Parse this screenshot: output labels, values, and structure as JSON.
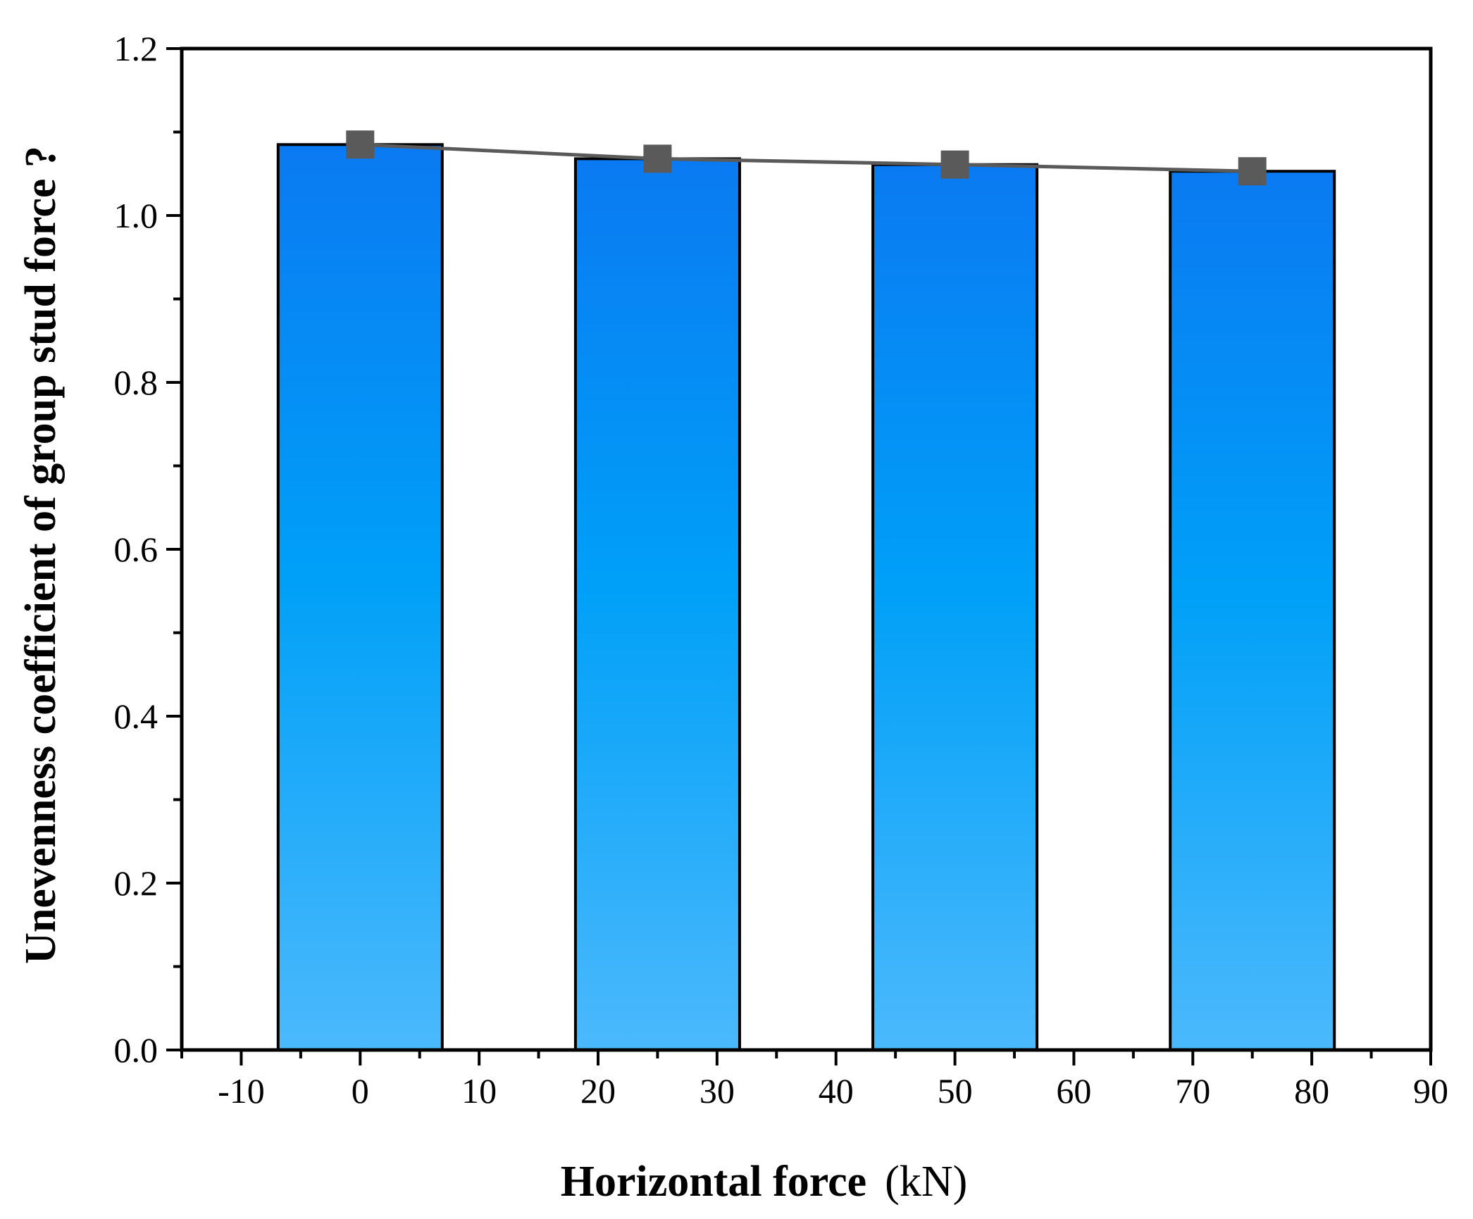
{
  "chart_data": {
    "type": "bar",
    "x_label": "Horizontal force",
    "x_unit": "(kN)",
    "y_label": "Unevenness coefficient of group stud force ?",
    "xlim": [
      -15,
      90
    ],
    "ylim": [
      0,
      1.2
    ],
    "x_ticks": [
      -10,
      0,
      10,
      20,
      30,
      40,
      50,
      60,
      70,
      80,
      90
    ],
    "x_tick_labels": [
      "-10",
      "0",
      "10",
      "20",
      "30",
      "40",
      "50",
      "60",
      "70",
      "80",
      "90"
    ],
    "y_ticks": [
      0,
      0.2,
      0.4,
      0.6,
      0.8,
      1.0,
      1.2
    ],
    "y_tick_labels": [
      "0.0",
      "0.2",
      "0.4",
      "0.6",
      "0.8",
      "1.0",
      "1.2"
    ],
    "bar_width": 13.8,
    "bars": [
      {
        "x": 0,
        "value": 1.085
      },
      {
        "x": 25,
        "value": 1.068
      },
      {
        "x": 50,
        "value": 1.061
      },
      {
        "x": 75,
        "value": 1.053
      }
    ],
    "series": [
      {
        "type": "line",
        "marker": "square",
        "x": [
          0,
          25,
          50,
          75
        ],
        "values": [
          1.085,
          1.068,
          1.061,
          1.053
        ],
        "color": "#5a5a5a"
      }
    ],
    "bar_gradient": {
      "top": "#0a7af2",
      "middle": "#00a0f8",
      "bottom": "#4bb9fc"
    },
    "bar_outline_color": "#000000",
    "grid": false
  }
}
